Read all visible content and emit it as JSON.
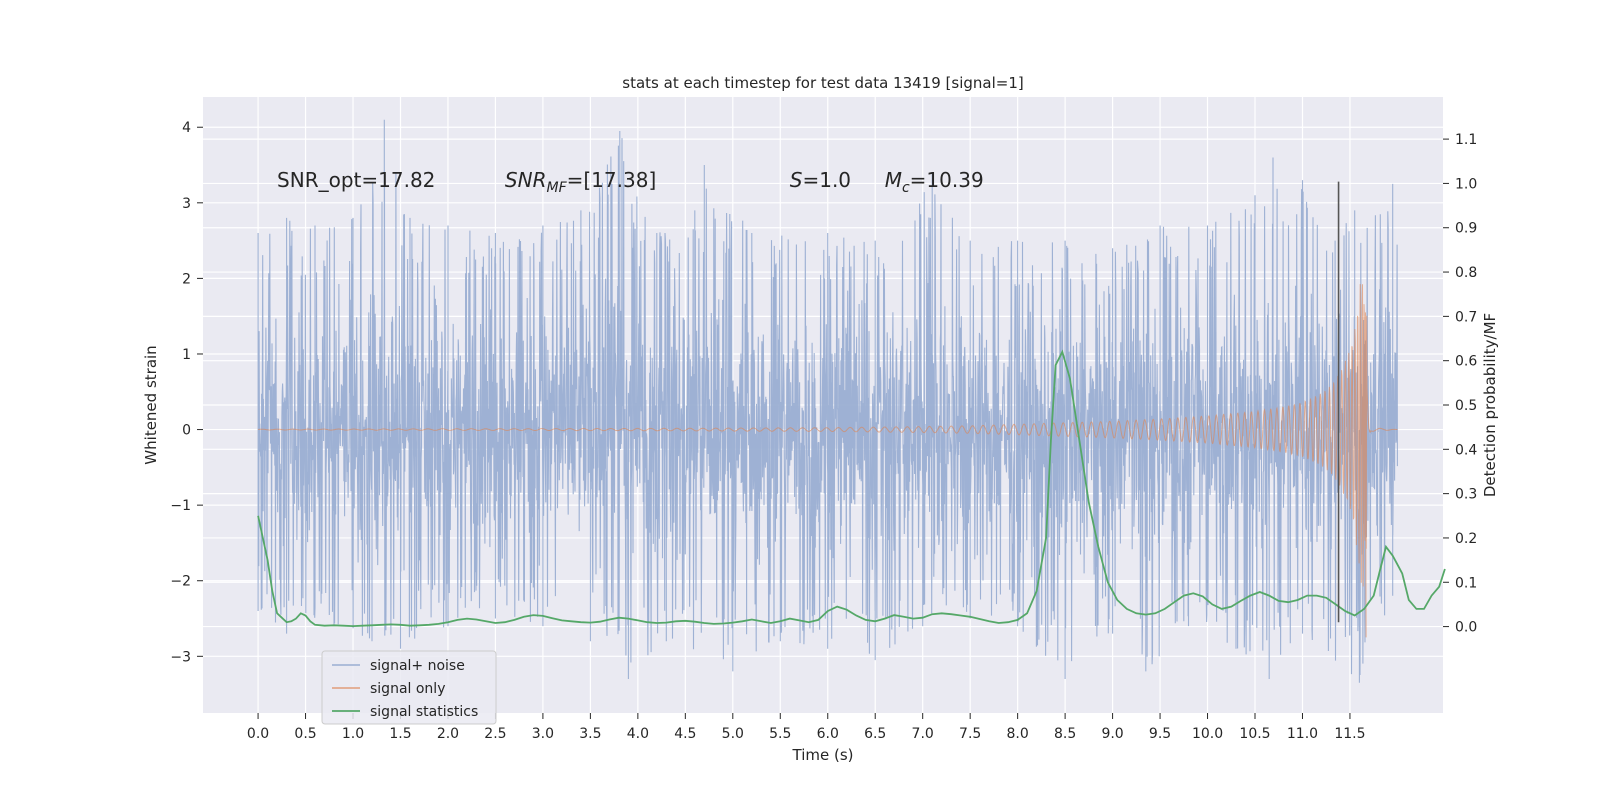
{
  "chart_data": {
    "type": "line",
    "title": "stats at each timestep for test data 13419 [signal=1]",
    "xlabel": "Time (s)",
    "ylabel": "Whitened strain",
    "y2label": "Detection probability/MF",
    "xlim": [
      -0.58,
      12.48
    ],
    "ylim": [
      -3.75,
      4.4
    ],
    "y2lim": [
      -0.195,
      1.195
    ],
    "xticks": [
      0.0,
      0.5,
      1.0,
      1.5,
      2.0,
      2.5,
      3.0,
      3.5,
      4.0,
      4.5,
      5.0,
      5.5,
      6.0,
      6.5,
      7.0,
      7.5,
      8.0,
      8.5,
      9.0,
      9.5,
      10.0,
      10.5,
      11.0,
      11.5
    ],
    "xtick_labels": [
      "0.0",
      "0.5",
      "1.0",
      "1.5",
      "2.0",
      "2.5",
      "3.0",
      "3.5",
      "4.0",
      "4.5",
      "5.0",
      "5.5",
      "6.0",
      "6.5",
      "7.0",
      "7.5",
      "8.0",
      "8.5",
      "9.0",
      "9.5",
      "10.0",
      "10.5",
      "11.0",
      "11.5"
    ],
    "yticks": [
      -3,
      -2,
      -1,
      0,
      1,
      2,
      3,
      4
    ],
    "ytick_labels": [
      "−3",
      "−2",
      "−1",
      "0",
      "1",
      "2",
      "3",
      "4"
    ],
    "y2ticks": [
      0.0,
      0.1,
      0.2,
      0.3,
      0.4,
      0.5,
      0.6,
      0.7,
      0.8,
      0.9,
      1.0,
      1.1
    ],
    "y2tick_labels": [
      "0.0",
      "0.1",
      "0.2",
      "0.3",
      "0.4",
      "0.5",
      "0.6",
      "0.7",
      "0.8",
      "0.9",
      "1.0",
      "1.1"
    ],
    "grid": true,
    "legend_position": "lower-left",
    "annotations": [
      {
        "label": "SNR_opt=17.82",
        "x": 0.2,
        "y": 3.3
      },
      {
        "label": "SNR_MF=[17.38]",
        "x": 2.6,
        "y": 3.3
      },
      {
        "label": "S=1.0",
        "x": 5.6,
        "y": 3.3
      },
      {
        "label": "M_c=10.39",
        "x": 6.6,
        "y": 3.3
      }
    ],
    "vline": {
      "x": 11.38,
      "ymin": -2.55,
      "ymax": 3.28
    },
    "series": [
      {
        "name": "signal+ noise",
        "axis": "left",
        "color": "#9aaed2",
        "kind": "noise",
        "x_range": [
          0.0,
          12.0
        ],
        "envelope_peaks": [
          [
            0.0,
            2.6
          ],
          [
            0.3,
            2.8
          ],
          [
            0.6,
            2.7
          ],
          [
            1.0,
            2.8
          ],
          [
            1.33,
            4.1
          ],
          [
            1.6,
            2.8
          ],
          [
            2.0,
            2.7
          ],
          [
            2.5,
            2.6
          ],
          [
            3.0,
            2.7
          ],
          [
            3.4,
            2.9
          ],
          [
            3.81,
            3.95
          ],
          [
            4.2,
            2.6
          ],
          [
            4.6,
            2.9
          ],
          [
            4.7,
            3.5
          ],
          [
            5.2,
            2.6
          ],
          [
            6.0,
            2.6
          ],
          [
            6.5,
            2.5
          ],
          [
            7.1,
            3.4
          ],
          [
            7.5,
            2.5
          ],
          [
            8.0,
            2.5
          ],
          [
            8.5,
            2.5
          ],
          [
            9.0,
            2.4
          ],
          [
            9.5,
            2.7
          ],
          [
            10.0,
            2.7
          ],
          [
            10.5,
            3.1
          ],
          [
            10.69,
            3.6
          ],
          [
            11.0,
            3.3
          ],
          [
            11.55,
            2.9
          ],
          [
            11.95,
            3.25
          ]
        ],
        "envelope_troughs": [
          [
            0.0,
            -2.4
          ],
          [
            0.3,
            -2.7
          ],
          [
            0.8,
            -2.6
          ],
          [
            1.2,
            -2.8
          ],
          [
            1.5,
            -2.9
          ],
          [
            2.0,
            -2.6
          ],
          [
            2.5,
            -2.5
          ],
          [
            3.0,
            -2.6
          ],
          [
            3.5,
            -2.8
          ],
          [
            3.9,
            -3.3
          ],
          [
            4.3,
            -2.8
          ],
          [
            5.0,
            -3.2
          ],
          [
            5.5,
            -2.8
          ],
          [
            6.0,
            -2.9
          ],
          [
            6.5,
            -3.05
          ],
          [
            7.0,
            -2.6
          ],
          [
            7.5,
            -2.5
          ],
          [
            8.0,
            -2.6
          ],
          [
            8.5,
            -3.3
          ],
          [
            9.0,
            -2.7
          ],
          [
            9.35,
            -3.2
          ],
          [
            9.8,
            -2.6
          ],
          [
            10.3,
            -2.9
          ],
          [
            10.65,
            -3.3
          ],
          [
            11.0,
            -2.7
          ],
          [
            11.6,
            -3.35
          ],
          [
            11.95,
            -2.2
          ]
        ]
      },
      {
        "name": "signal only",
        "axis": "left",
        "color": "#dd8452",
        "kind": "chirp",
        "x_range": [
          0.0,
          12.0
        ],
        "merger_time": 11.68,
        "envelope": [
          [
            0.0,
            0.005
          ],
          [
            2.0,
            0.01
          ],
          [
            4.0,
            0.015
          ],
          [
            6.0,
            0.025
          ],
          [
            7.0,
            0.04
          ],
          [
            7.5,
            0.05
          ],
          [
            8.0,
            0.07
          ],
          [
            8.5,
            0.09
          ],
          [
            9.0,
            0.11
          ],
          [
            9.5,
            0.14
          ],
          [
            10.0,
            0.18
          ],
          [
            10.5,
            0.24
          ],
          [
            10.8,
            0.3
          ],
          [
            11.0,
            0.36
          ],
          [
            11.2,
            0.48
          ],
          [
            11.3,
            0.58
          ],
          [
            11.4,
            0.76
          ],
          [
            11.5,
            1.05
          ],
          [
            11.55,
            1.35
          ],
          [
            11.6,
            1.85
          ],
          [
            11.63,
            2.15
          ],
          [
            11.66,
            2.05
          ],
          [
            11.68,
            1.4
          ],
          [
            11.7,
            0.4
          ],
          [
            11.72,
            0.05
          ],
          [
            12.0,
            0.0
          ]
        ],
        "min_point": [
          11.67,
          -2.75
        ]
      },
      {
        "name": "signal statistics",
        "axis": "right",
        "color": "#55a868",
        "kind": "line",
        "points": [
          [
            0.0,
            0.25
          ],
          [
            0.1,
            0.15
          ],
          [
            0.15,
            0.08
          ],
          [
            0.2,
            0.03
          ],
          [
            0.25,
            0.02
          ],
          [
            0.3,
            0.01
          ],
          [
            0.35,
            0.012
          ],
          [
            0.4,
            0.018
          ],
          [
            0.45,
            0.03
          ],
          [
            0.5,
            0.025
          ],
          [
            0.55,
            0.012
          ],
          [
            0.6,
            0.004
          ],
          [
            0.7,
            0.002
          ],
          [
            0.8,
            0.003
          ],
          [
            0.9,
            0.002
          ],
          [
            1.0,
            0.001
          ],
          [
            1.1,
            0.002
          ],
          [
            1.2,
            0.003
          ],
          [
            1.3,
            0.004
          ],
          [
            1.4,
            0.005
          ],
          [
            1.5,
            0.004
          ],
          [
            1.6,
            0.002
          ],
          [
            1.7,
            0.003
          ],
          [
            1.8,
            0.004
          ],
          [
            1.9,
            0.006
          ],
          [
            2.0,
            0.01
          ],
          [
            2.1,
            0.015
          ],
          [
            2.2,
            0.018
          ],
          [
            2.3,
            0.016
          ],
          [
            2.4,
            0.012
          ],
          [
            2.5,
            0.008
          ],
          [
            2.6,
            0.01
          ],
          [
            2.7,
            0.015
          ],
          [
            2.8,
            0.022
          ],
          [
            2.9,
            0.026
          ],
          [
            3.0,
            0.024
          ],
          [
            3.1,
            0.019
          ],
          [
            3.2,
            0.014
          ],
          [
            3.3,
            0.012
          ],
          [
            3.4,
            0.01
          ],
          [
            3.5,
            0.009
          ],
          [
            3.6,
            0.011
          ],
          [
            3.7,
            0.016
          ],
          [
            3.8,
            0.02
          ],
          [
            3.9,
            0.018
          ],
          [
            4.0,
            0.014
          ],
          [
            4.1,
            0.01
          ],
          [
            4.2,
            0.008
          ],
          [
            4.3,
            0.009
          ],
          [
            4.4,
            0.012
          ],
          [
            4.5,
            0.013
          ],
          [
            4.6,
            0.011
          ],
          [
            4.7,
            0.008
          ],
          [
            4.8,
            0.006
          ],
          [
            4.9,
            0.007
          ],
          [
            5.0,
            0.009
          ],
          [
            5.1,
            0.012
          ],
          [
            5.2,
            0.016
          ],
          [
            5.3,
            0.012
          ],
          [
            5.4,
            0.008
          ],
          [
            5.5,
            0.012
          ],
          [
            5.6,
            0.018
          ],
          [
            5.7,
            0.014
          ],
          [
            5.8,
            0.01
          ],
          [
            5.9,
            0.015
          ],
          [
            6.0,
            0.035
          ],
          [
            6.1,
            0.045
          ],
          [
            6.2,
            0.038
          ],
          [
            6.3,
            0.025
          ],
          [
            6.4,
            0.015
          ],
          [
            6.5,
            0.012
          ],
          [
            6.6,
            0.018
          ],
          [
            6.7,
            0.026
          ],
          [
            6.8,
            0.022
          ],
          [
            6.9,
            0.018
          ],
          [
            7.0,
            0.02
          ],
          [
            7.1,
            0.028
          ],
          [
            7.2,
            0.03
          ],
          [
            7.3,
            0.028
          ],
          [
            7.4,
            0.025
          ],
          [
            7.5,
            0.022
          ],
          [
            7.6,
            0.017
          ],
          [
            7.7,
            0.012
          ],
          [
            7.8,
            0.008
          ],
          [
            7.9,
            0.01
          ],
          [
            8.0,
            0.015
          ],
          [
            8.1,
            0.03
          ],
          [
            8.2,
            0.08
          ],
          [
            8.3,
            0.2
          ],
          [
            8.35,
            0.42
          ],
          [
            8.4,
            0.59
          ],
          [
            8.47,
            0.62
          ],
          [
            8.55,
            0.56
          ],
          [
            8.65,
            0.42
          ],
          [
            8.75,
            0.28
          ],
          [
            8.85,
            0.18
          ],
          [
            8.95,
            0.1
          ],
          [
            9.05,
            0.06
          ],
          [
            9.15,
            0.04
          ],
          [
            9.25,
            0.03
          ],
          [
            9.35,
            0.027
          ],
          [
            9.45,
            0.03
          ],
          [
            9.55,
            0.04
          ],
          [
            9.65,
            0.055
          ],
          [
            9.75,
            0.07
          ],
          [
            9.85,
            0.075
          ],
          [
            9.95,
            0.068
          ],
          [
            10.05,
            0.05
          ],
          [
            10.15,
            0.04
          ],
          [
            10.25,
            0.045
          ],
          [
            10.35,
            0.058
          ],
          [
            10.45,
            0.07
          ],
          [
            10.55,
            0.078
          ],
          [
            10.65,
            0.07
          ],
          [
            10.75,
            0.058
          ],
          [
            10.85,
            0.055
          ],
          [
            10.95,
            0.06
          ],
          [
            11.05,
            0.07
          ],
          [
            11.15,
            0.07
          ],
          [
            11.25,
            0.065
          ],
          [
            11.35,
            0.05
          ],
          [
            11.45,
            0.035
          ],
          [
            11.55,
            0.025
          ],
          [
            11.65,
            0.04
          ],
          [
            11.75,
            0.07
          ],
          [
            11.82,
            0.13
          ],
          [
            11.88,
            0.18
          ],
          [
            11.95,
            0.16
          ],
          [
            12.05,
            0.12
          ],
          [
            12.12,
            0.06
          ],
          [
            12.2,
            0.04
          ],
          [
            12.28,
            0.04
          ],
          [
            12.36,
            0.07
          ],
          [
            12.44,
            0.09
          ],
          [
            12.5,
            0.13
          ]
        ]
      }
    ]
  }
}
